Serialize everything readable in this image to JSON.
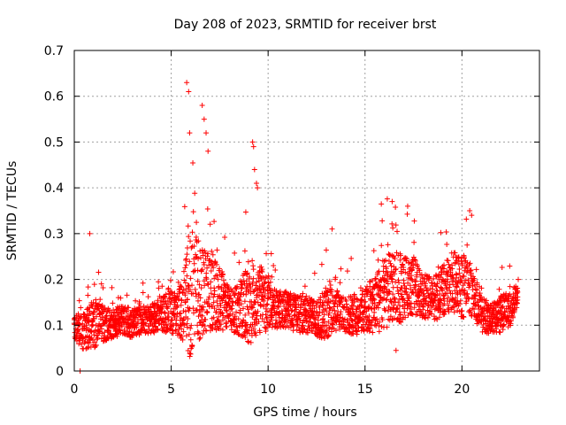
{
  "chart_data": {
    "type": "scatter",
    "title": "Day 208 of 2023, SRMTID for receiver brst",
    "xlabel": "GPS time / hours",
    "ylabel": "SRMTID / TECUs",
    "xlim": [
      0,
      24
    ],
    "ylim": [
      0,
      0.7
    ],
    "x_ticks": [
      0,
      5,
      10,
      15,
      20
    ],
    "x_tick_labels": [
      "0",
      "5",
      "10",
      "15",
      "20"
    ],
    "y_ticks": [
      0,
      0.1,
      0.2,
      0.3,
      0.4,
      0.5,
      0.6,
      0.7
    ],
    "y_tick_labels": [
      "0",
      "0.1",
      "0.2",
      "0.3",
      "0.4",
      "0.5",
      "0.6",
      "0.7"
    ],
    "grid": true,
    "marker": "+",
    "marker_color": "#ff0000",
    "series": [
      {
        "name": "SRMTID",
        "envelope_hours": [
          0,
          0.5,
          1,
          1.5,
          2,
          2.5,
          3,
          3.5,
          4,
          4.5,
          5,
          5.5,
          6,
          6.5,
          7,
          7.5,
          8,
          8.5,
          9,
          9.5,
          10,
          10.5,
          11,
          11.5,
          12,
          12.5,
          13,
          13.5,
          14,
          14.5,
          15,
          15.5,
          16,
          16.5,
          17,
          17.5,
          18,
          18.5,
          19,
          19.5,
          20,
          20.5,
          21,
          21.5,
          22,
          22.5,
          22.9
        ],
        "envelope_base": [
          0.09,
          0.08,
          0.1,
          0.1,
          0.1,
          0.11,
          0.1,
          0.11,
          0.11,
          0.12,
          0.12,
          0.12,
          0.15,
          0.17,
          0.16,
          0.15,
          0.13,
          0.13,
          0.14,
          0.15,
          0.14,
          0.13,
          0.13,
          0.12,
          0.12,
          0.11,
          0.12,
          0.13,
          0.12,
          0.12,
          0.13,
          0.14,
          0.16,
          0.18,
          0.17,
          0.18,
          0.16,
          0.15,
          0.17,
          0.19,
          0.18,
          0.17,
          0.12,
          0.11,
          0.12,
          0.13,
          0.17
        ],
        "envelope_spread": [
          0.04,
          0.05,
          0.07,
          0.05,
          0.04,
          0.04,
          0.04,
          0.04,
          0.04,
          0.05,
          0.06,
          0.07,
          0.18,
          0.14,
          0.1,
          0.09,
          0.06,
          0.07,
          0.12,
          0.1,
          0.07,
          0.05,
          0.05,
          0.05,
          0.05,
          0.05,
          0.07,
          0.06,
          0.05,
          0.06,
          0.06,
          0.08,
          0.1,
          0.1,
          0.09,
          0.08,
          0.06,
          0.06,
          0.07,
          0.08,
          0.09,
          0.07,
          0.05,
          0.04,
          0.05,
          0.05,
          0.03
        ],
        "peaks": [
          {
            "x": 0.3,
            "y": 0.0
          },
          {
            "x": 0.8,
            "y": 0.3
          },
          {
            "x": 5.8,
            "y": 0.63
          },
          {
            "x": 5.9,
            "y": 0.61
          },
          {
            "x": 5.95,
            "y": 0.52
          },
          {
            "x": 6.6,
            "y": 0.58
          },
          {
            "x": 6.7,
            "y": 0.55
          },
          {
            "x": 6.8,
            "y": 0.52
          },
          {
            "x": 6.9,
            "y": 0.48
          },
          {
            "x": 9.2,
            "y": 0.5
          },
          {
            "x": 9.25,
            "y": 0.49
          },
          {
            "x": 9.3,
            "y": 0.44
          },
          {
            "x": 9.4,
            "y": 0.41
          },
          {
            "x": 9.45,
            "y": 0.4
          },
          {
            "x": 16.4,
            "y": 0.37
          },
          {
            "x": 17.2,
            "y": 0.36
          },
          {
            "x": 20.4,
            "y": 0.35
          },
          {
            "x": 20.5,
            "y": 0.34
          },
          {
            "x": 13.3,
            "y": 0.31
          },
          {
            "x": 16.6,
            "y": 0.045
          }
        ]
      }
    ]
  }
}
